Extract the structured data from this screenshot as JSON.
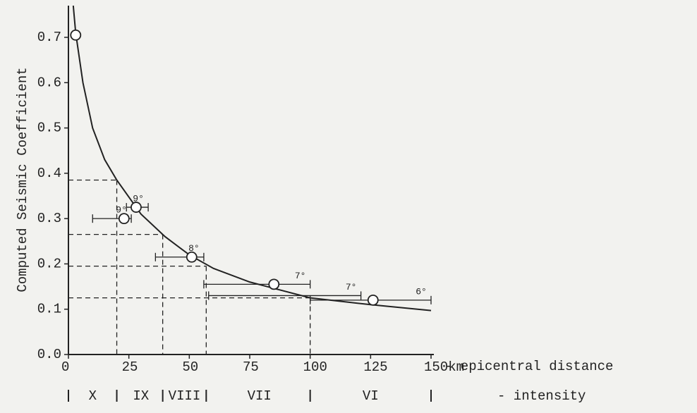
{
  "chart_data": {
    "type": "scatter",
    "ylabel": "Computed Seismic Coefficient",
    "xlabel": "- epicentral distance",
    "xlim": [
      0,
      150
    ],
    "ylim": [
      0,
      0.77
    ],
    "xticks": [
      0,
      25,
      50,
      75,
      100,
      125,
      {
        "value": 150,
        "label": "150km"
      }
    ],
    "yticks": [
      {
        "value": 0,
        "label": "0.0"
      },
      0.1,
      0.2,
      0.3,
      0.4,
      0.5,
      0.6,
      0.7
    ],
    "color": "#222222",
    "curve": {
      "x": [
        2,
        3,
        6,
        10,
        15,
        20,
        30,
        40,
        50,
        60,
        75,
        100,
        125,
        150
      ],
      "y": [
        0.77,
        0.71,
        0.6,
        0.5,
        0.43,
        0.385,
        0.31,
        0.26,
        0.22,
        0.19,
        0.16,
        0.125,
        0.11,
        0.097
      ]
    },
    "points": [
      {
        "x": 3,
        "y": 0.705
      },
      {
        "x": 28,
        "y": 0.325
      },
      {
        "x": 23,
        "y": 0.3
      },
      {
        "x": 51,
        "y": 0.215
      },
      {
        "x": 85,
        "y": 0.155
      },
      {
        "x": 126,
        "y": 0.12
      }
    ],
    "ranges": [
      {
        "label": "9°",
        "y": 0.325,
        "from": 24,
        "to": 33
      },
      {
        "label": "9°",
        "y": 0.3,
        "from": 10,
        "to": 26
      },
      {
        "label": "8°",
        "y": 0.215,
        "from": 36,
        "to": 56
      },
      {
        "label": "7°",
        "y": 0.155,
        "from": 56,
        "to": 100
      },
      {
        "label": "7°",
        "y": 0.13,
        "from": 58,
        "to": 121
      },
      {
        "label": "6°",
        "y": 0.12,
        "from": 100,
        "to": 150
      }
    ],
    "guides": [
      {
        "x": 20,
        "y": 0.385
      },
      {
        "x": 39,
        "y": 0.265
      },
      {
        "x": 57,
        "y": 0.195
      },
      {
        "x": 100,
        "y": 0.125
      }
    ],
    "intensity_label": "- intensity",
    "intensity_bounds": [
      0,
      20,
      39,
      57,
      100,
      150
    ],
    "intensity": [
      {
        "label": "X",
        "x": 10
      },
      {
        "label": "IX",
        "x": 30
      },
      {
        "label": "VIII",
        "x": 48
      },
      {
        "label": "VII",
        "x": 79
      },
      {
        "label": "VI",
        "x": 125
      }
    ]
  }
}
